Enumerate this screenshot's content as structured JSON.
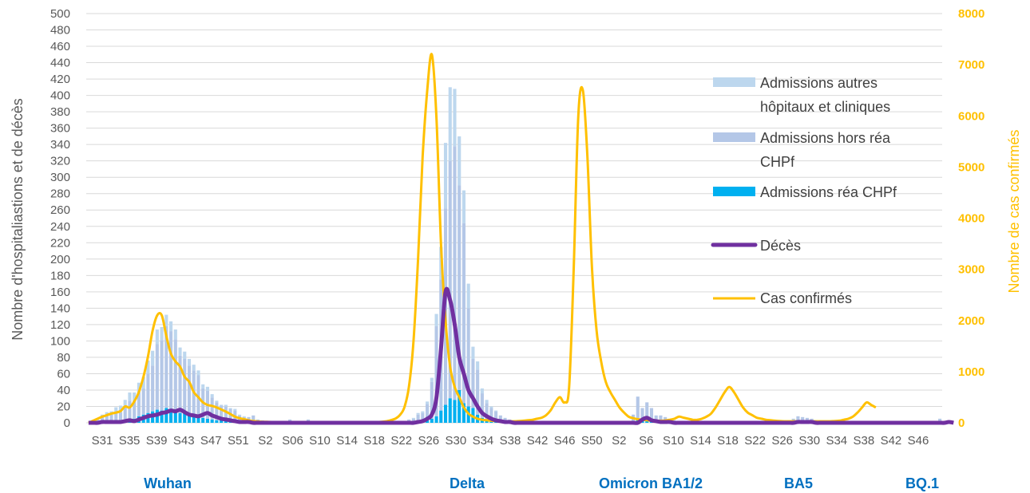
{
  "chart_data": {
    "type": "bar",
    "title": "",
    "ylabel": "Nombre d'hospitaliastions et de décès",
    "ylabel_right": "Nombre de cas confirmés",
    "ylim": [
      0,
      500
    ],
    "ylim_right": [
      0,
      8000
    ],
    "y_ticks": [
      "0",
      "20",
      "40",
      "60",
      "80",
      "100",
      "120",
      "140",
      "160",
      "180",
      "200",
      "220",
      "240",
      "260",
      "280",
      "300",
      "320",
      "340",
      "360",
      "380",
      "400",
      "420",
      "440",
      "460",
      "480",
      "500"
    ],
    "y_ticks_right": [
      "0",
      "1000",
      "2000",
      "3000",
      "4000",
      "5000",
      "6000",
      "7000",
      "8000"
    ],
    "x_ticks": [
      "S31",
      "S35",
      "S39",
      "S43",
      "S47",
      "S51",
      "S2",
      "S06",
      "S10",
      "S14",
      "S18",
      "S22",
      "S26",
      "S30",
      "S34",
      "S38",
      "S42",
      "S46",
      "S50",
      "S2",
      "S6",
      "S10",
      "S14",
      "S18",
      "S22",
      "S26",
      "S30",
      "S34",
      "S38",
      "S42",
      "S46"
    ],
    "grid": true,
    "legend_position": "right",
    "series": [
      {
        "name": "Admissions autres hôpitaux et cliniques",
        "kind": "bar",
        "color": "#BDD7EE",
        "values": [
          0,
          2,
          2,
          3,
          3,
          4,
          5,
          8,
          8,
          10,
          10,
          12,
          14,
          16,
          18,
          18,
          16,
          14,
          12,
          12,
          10,
          9,
          8,
          7,
          6,
          5,
          5,
          4,
          2,
          1,
          2,
          1,
          2,
          1,
          1,
          0,
          0,
          0,
          0,
          0,
          0,
          0,
          1,
          0,
          0,
          0,
          0,
          0,
          0,
          0,
          0,
          0,
          0,
          0,
          0,
          0,
          0,
          0,
          0,
          0,
          0,
          0,
          0,
          0,
          0,
          0,
          0,
          0,
          0,
          0,
          0,
          1,
          2,
          2,
          3,
          5,
          15,
          40,
          80,
          90,
          70,
          60,
          40,
          30,
          15,
          10,
          6,
          4,
          2,
          1,
          0,
          0,
          0,
          0,
          0,
          0,
          0,
          0,
          0,
          0,
          0,
          0,
          0,
          0,
          0,
          0,
          0,
          0,
          0,
          0,
          0,
          0,
          0,
          0,
          0,
          0,
          0,
          0,
          0,
          0,
          0,
          0,
          0,
          0,
          0,
          0,
          0,
          0,
          0,
          0,
          0,
          0,
          0,
          0,
          0,
          0,
          0,
          0,
          0,
          0,
          0,
          0,
          0,
          0,
          0,
          0,
          0,
          0,
          0,
          0,
          0,
          0,
          0,
          0,
          0,
          0,
          0,
          0,
          0,
          0,
          0,
          0,
          0,
          0,
          0,
          0,
          0,
          0,
          0,
          0,
          0,
          0,
          0,
          0,
          0,
          0,
          0,
          0,
          0,
          0,
          0,
          0,
          0,
          0,
          0,
          0,
          0
        ]
      },
      {
        "name": "Admissions hors réa CHPf",
        "kind": "bar",
        "color": "#B4C7E7",
        "values": [
          0,
          1,
          2,
          6,
          8,
          8,
          11,
          10,
          16,
          22,
          22,
          29,
          32,
          48,
          56,
          80,
          86,
          100,
          96,
          88,
          70,
          66,
          60,
          55,
          50,
          36,
          34,
          27,
          22,
          18,
          18,
          15,
          14,
          8,
          6,
          6,
          8,
          4,
          3,
          2,
          1,
          1,
          1,
          1,
          3,
          1,
          1,
          2,
          4,
          1,
          1,
          1,
          0,
          1,
          1,
          0,
          1,
          0,
          1,
          1,
          0,
          1,
          0,
          1,
          0,
          1,
          1,
          1,
          2,
          2,
          3,
          4,
          8,
          10,
          20,
          45,
          110,
          160,
          240,
          290,
          310,
          250,
          220,
          120,
          60,
          55,
          30,
          20,
          15,
          12,
          8,
          5,
          3,
          2,
          2,
          1,
          1,
          1,
          1,
          0,
          1,
          0,
          0,
          1,
          1,
          0,
          0,
          0,
          0,
          0,
          1,
          0,
          0,
          0,
          0,
          0,
          0,
          0,
          0,
          8,
          28,
          15,
          22,
          16,
          8,
          8,
          6,
          4,
          3,
          2,
          1,
          1,
          1,
          0,
          1,
          0,
          0,
          1,
          0,
          0,
          0,
          0,
          0,
          0,
          0,
          0,
          0,
          1,
          0,
          0,
          0,
          0,
          0,
          3,
          5,
          7,
          6,
          5,
          4,
          3,
          2,
          1,
          2,
          3,
          3,
          2,
          2,
          1,
          0,
          0,
          0,
          1,
          0,
          0,
          0,
          0,
          0,
          0,
          0,
          1,
          0,
          0,
          0,
          0,
          0,
          0,
          4,
          3,
          2
        ]
      },
      {
        "name": "Admissions réa CHPf",
        "kind": "bar",
        "color": "#00B0F0",
        "values": [
          0,
          0,
          1,
          1,
          2,
          2,
          3,
          3,
          4,
          5,
          5,
          8,
          10,
          12,
          14,
          16,
          15,
          18,
          16,
          14,
          12,
          12,
          10,
          9,
          8,
          6,
          5,
          4,
          3,
          3,
          2,
          2,
          1,
          1,
          1,
          1,
          1,
          0,
          0,
          0,
          0,
          0,
          0,
          0,
          1,
          0,
          0,
          0,
          0,
          0,
          0,
          0,
          0,
          0,
          0,
          0,
          0,
          0,
          0,
          0,
          0,
          0,
          0,
          0,
          0,
          0,
          0,
          0,
          0,
          0,
          1,
          1,
          2,
          2,
          3,
          5,
          8,
          15,
          22,
          30,
          28,
          40,
          24,
          20,
          18,
          10,
          6,
          4,
          3,
          2,
          1,
          1,
          1,
          0,
          0,
          0,
          0,
          0,
          0,
          0,
          0,
          0,
          0,
          0,
          0,
          0,
          0,
          0,
          0,
          0,
          0,
          0,
          0,
          0,
          0,
          0,
          0,
          0,
          0,
          2,
          4,
          3,
          3,
          2,
          1,
          1,
          1,
          1,
          0,
          0,
          0,
          0,
          0,
          0,
          0,
          0,
          0,
          0,
          0,
          0,
          0,
          0,
          0,
          0,
          0,
          0,
          0,
          0,
          0,
          0,
          0,
          0,
          0,
          0,
          0,
          1,
          1,
          1,
          1,
          0,
          0,
          0,
          0,
          0,
          0,
          0,
          0,
          0,
          0,
          0,
          0,
          0,
          0,
          0,
          0,
          0,
          0,
          0,
          0,
          0,
          0,
          0,
          0,
          0,
          0,
          0,
          1,
          1,
          1,
          0
        ]
      },
      {
        "name": "Décès",
        "kind": "line",
        "color": "#7030A0",
        "values": [
          0,
          0,
          0,
          1,
          1,
          1,
          1,
          1,
          2,
          3,
          2,
          4,
          6,
          8,
          9,
          10,
          12,
          13,
          15,
          14,
          16,
          13,
          10,
          9,
          8,
          10,
          12,
          9,
          7,
          5,
          4,
          3,
          2,
          1,
          1,
          1,
          0,
          0,
          0,
          0,
          0,
          0,
          0,
          0,
          0,
          0,
          0,
          0,
          0,
          0,
          0,
          0,
          0,
          0,
          0,
          0,
          0,
          0,
          0,
          0,
          0,
          0,
          0,
          0,
          0,
          0,
          0,
          0,
          0,
          0,
          0,
          0,
          1,
          2,
          5,
          10,
          30,
          90,
          160,
          150,
          120,
          80,
          60,
          40,
          30,
          20,
          12,
          8,
          5,
          3,
          2,
          1,
          1,
          0,
          0,
          0,
          0,
          0,
          0,
          0,
          0,
          0,
          0,
          0,
          0,
          0,
          0,
          0,
          0,
          0,
          0,
          0,
          0,
          0,
          0,
          0,
          0,
          0,
          0,
          0,
          0,
          4,
          6,
          3,
          2,
          1,
          1,
          1,
          0,
          0,
          0,
          0,
          0,
          0,
          0,
          0,
          0,
          0,
          0,
          0,
          0,
          0,
          0,
          0,
          0,
          0,
          0,
          0,
          0,
          0,
          0,
          0,
          0,
          0,
          0,
          1,
          1,
          1,
          1,
          0,
          0,
          0,
          0,
          0,
          0,
          0,
          0,
          0,
          0,
          0,
          0,
          0,
          0,
          0,
          0,
          0,
          0,
          0,
          0,
          0,
          0,
          0,
          0,
          0,
          0,
          0,
          0,
          0,
          1,
          0
        ]
      },
      {
        "name": "Cas confirmés",
        "kind": "line",
        "axis": "right",
        "color": "#FFC000",
        "values": [
          0,
          40,
          80,
          120,
          150,
          180,
          200,
          230,
          320,
          300,
          420,
          600,
          900,
          1300,
          1800,
          2100,
          2100,
          1700,
          1350,
          1200,
          1100,
          900,
          800,
          600,
          500,
          400,
          350,
          330,
          300,
          260,
          220,
          170,
          120,
          90,
          70,
          50,
          35,
          25,
          20,
          18,
          15,
          12,
          10,
          10,
          8,
          8,
          7,
          7,
          8,
          8,
          9,
          9,
          10,
          10,
          10,
          10,
          9,
          8,
          8,
          8,
          9,
          10,
          12,
          15,
          20,
          30,
          50,
          80,
          150,
          300,
          700,
          1600,
          3200,
          5200,
          6500,
          7200,
          6000,
          3500,
          2000,
          1100,
          700,
          500,
          300,
          180,
          120,
          80,
          60,
          50,
          40,
          35,
          30,
          30,
          30,
          30,
          35,
          40,
          50,
          60,
          80,
          100,
          150,
          250,
          400,
          500,
          400,
          700,
          3000,
          6000,
          6500,
          5200,
          3000,
          1800,
          1200,
          800,
          600,
          450,
          300,
          200,
          120,
          90,
          70,
          60,
          50,
          40,
          40,
          40,
          45,
          60,
          80,
          120,
          100,
          80,
          60,
          60,
          80,
          120,
          180,
          300,
          450,
          600,
          700,
          600,
          450,
          300,
          200,
          150,
          100,
          80,
          60,
          50,
          40,
          35,
          30,
          30,
          30,
          30,
          30,
          30,
          30,
          30,
          30,
          30,
          30,
          35,
          40,
          60,
          80,
          120,
          200,
          300,
          400,
          350,
          300
        ]
      }
    ],
    "annotations": [
      "Wuhan",
      "Delta",
      "Omicron BA1/2",
      "BA5",
      "BQ.1"
    ]
  },
  "legend": {
    "items": [
      {
        "line1": "Admissions autres",
        "line2": "hôpitaux et cliniques"
      },
      {
        "line1": "Admissions hors réa",
        "line2": "CHPf"
      },
      {
        "line1": "Admissions réa CHPf",
        "line2": ""
      },
      {
        "line1": "Décès",
        "line2": ""
      },
      {
        "line1": "Cas confirmés",
        "line2": ""
      }
    ]
  },
  "waves": [
    "Wuhan",
    "Delta",
    "Omicron BA1/2",
    "BA5",
    "BQ.1"
  ],
  "colors": {
    "light_bar": "#BDD7EE",
    "mid_bar": "#B4C7E7",
    "rea_bar": "#00B0F0",
    "deaths": "#7030A0",
    "cases": "#FFC000",
    "wave_text": "#0070C0"
  }
}
